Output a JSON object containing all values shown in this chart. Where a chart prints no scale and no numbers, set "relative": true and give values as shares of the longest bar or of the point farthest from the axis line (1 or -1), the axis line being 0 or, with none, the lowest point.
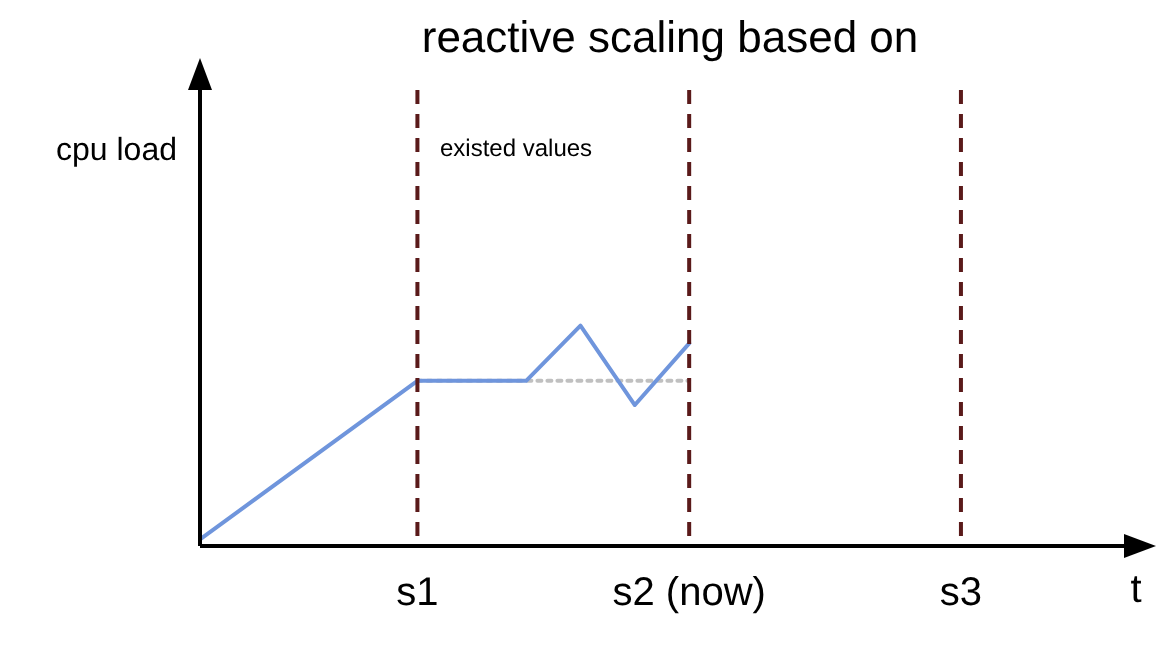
{
  "chart_data": {
    "type": "line",
    "title": "reactive scaling based on",
    "xlabel": "t",
    "ylabel": "cpu load",
    "relative": true,
    "marker": "none",
    "categories": [
      null,
      null,
      null,
      null,
      "s1",
      null,
      null,
      null,
      null,
      "s2 (now)",
      null,
      null,
      null,
      null,
      "s3",
      null,
      null,
      null
    ],
    "series": [
      {
        "color": "#6f95dc",
        "line_style": "solid",
        "values": [
          0.03,
          null,
          null,
          null,
          0.75,
          null,
          0.75,
          1,
          0.64,
          0.92,
          null,
          null,
          null,
          null,
          null,
          null,
          null,
          null
        ]
      },
      {
        "color": "#c0c0c0",
        "line_style": "dotted",
        "values": [
          null,
          null,
          null,
          null,
          0.75,
          null,
          null,
          null,
          null,
          0.75,
          null,
          null,
          null,
          null,
          null,
          null,
          null,
          null
        ]
      }
    ],
    "ref_lines": [
      {
        "axis": "x",
        "value": "s1",
        "color": "#5a1a1a",
        "line_style": "dashed"
      },
      {
        "axis": "x",
        "value": "s2 (now)",
        "color": "#5a1a1a",
        "line_style": "dashed"
      },
      {
        "axis": "x",
        "value": "s3",
        "color": "#5a1a1a",
        "line_style": "dashed"
      }
    ],
    "annotations": [
      "existed values"
    ]
  }
}
